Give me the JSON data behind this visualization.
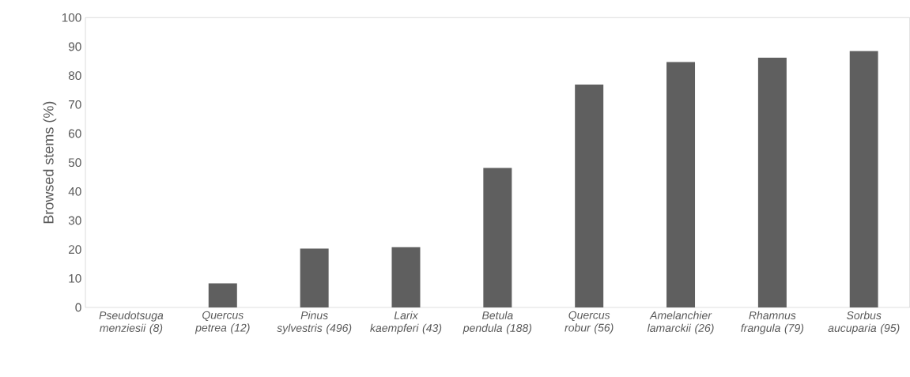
{
  "chart_data": {
    "type": "bar",
    "ylabel": "Browsed stems (%)",
    "categories": [
      "Pseudotsuga menziesii (8)",
      "Quercus petrea (12)",
      "Pinus sylvestris (496)",
      "Larix kaempferi (43)",
      "Betula pendula (188)",
      "Quercus robur (56)",
      "Amelanchier lamarckii (26)",
      "Rhamnus frangula (79)",
      "Sorbus aucuparia (95)"
    ],
    "values": [
      0,
      8.3,
      20.3,
      20.8,
      48.1,
      76.9,
      84.7,
      86.2,
      88.5
    ],
    "color": "#5f5f5f",
    "ylim": [
      0,
      100
    ],
    "yticks": [
      0,
      10,
      20,
      30,
      40,
      50,
      60,
      70,
      80,
      90,
      100
    ],
    "grid": false
  }
}
